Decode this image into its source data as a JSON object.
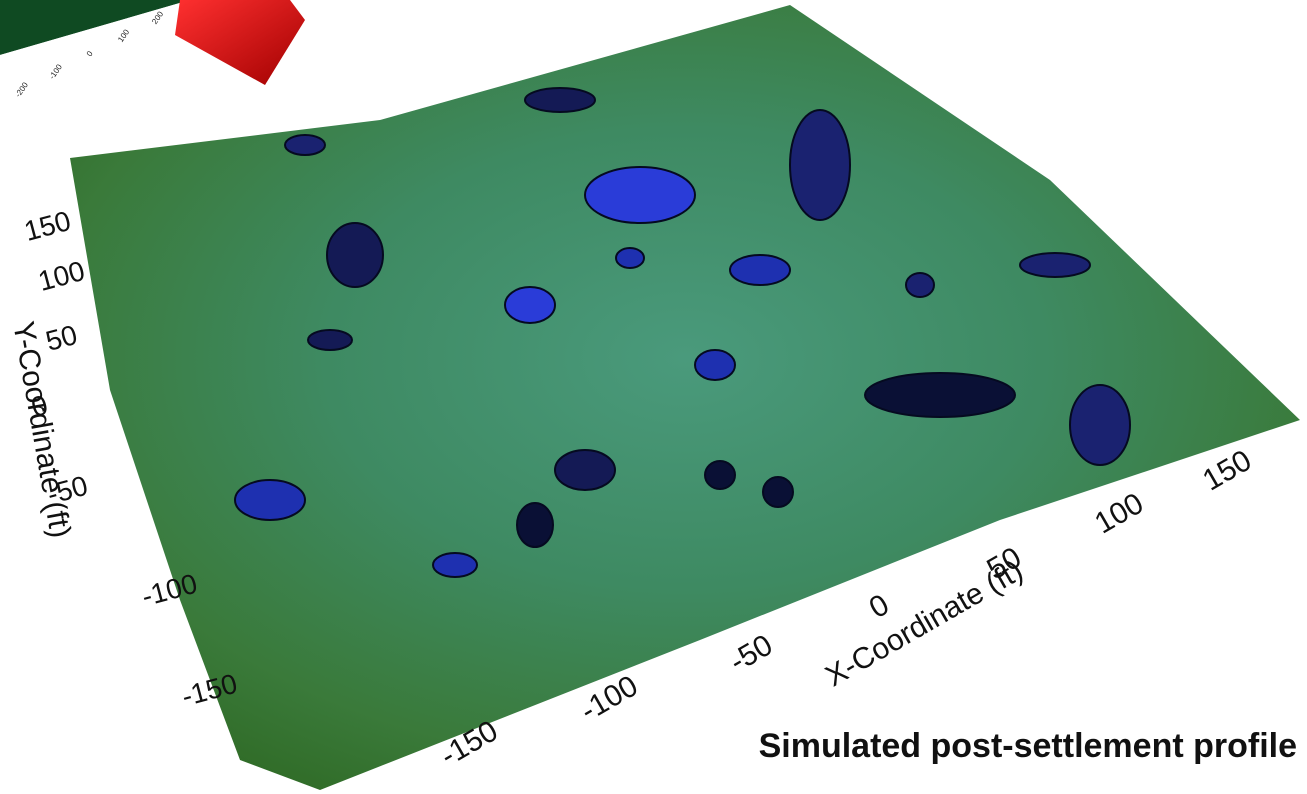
{
  "inset": {
    "ticks": [
      -200,
      -100,
      0,
      100,
      200
    ]
  },
  "y_axis": {
    "label": "Y-Coordinate (ft)",
    "ticks": [
      150,
      100,
      50,
      0,
      -50,
      -100,
      -150
    ]
  },
  "x_axis": {
    "label": "X-Coordinate (ft)",
    "ticks": [
      -150,
      -100,
      -50,
      0,
      50,
      100,
      150
    ]
  },
  "caption": "Simulated post-settlement profile"
}
